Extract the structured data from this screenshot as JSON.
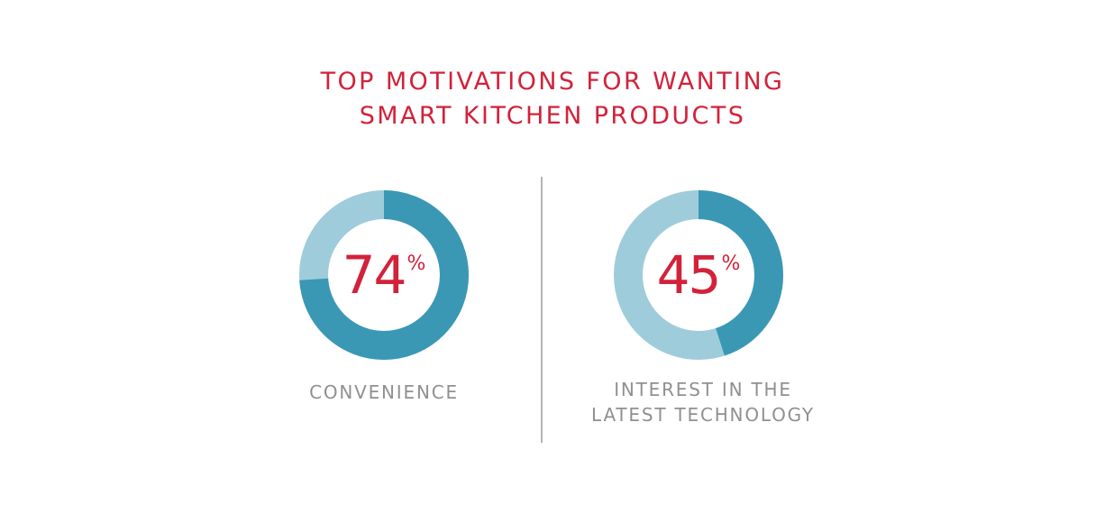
{
  "title": {
    "line1": "TOP MOTIVATIONS FOR WANTING",
    "line2": "SMART KITCHEN PRODUCTS"
  },
  "colors": {
    "title": "#d2223a",
    "value": "#d2223a",
    "ring_dark": "#3a98b5",
    "ring_light": "#9fccda",
    "label": "#909090",
    "divider": "#b5b5b5"
  },
  "chart_data": [
    {
      "type": "pie",
      "variant": "donut",
      "value": 74,
      "value_label": "74",
      "unit": "%",
      "label_lines": [
        "CONVENIENCE"
      ]
    },
    {
      "type": "pie",
      "variant": "donut",
      "value": 45,
      "value_label": "45",
      "unit": "%",
      "label_lines": [
        "INTEREST IN THE",
        "LATEST TECHNOLOGY"
      ]
    }
  ]
}
